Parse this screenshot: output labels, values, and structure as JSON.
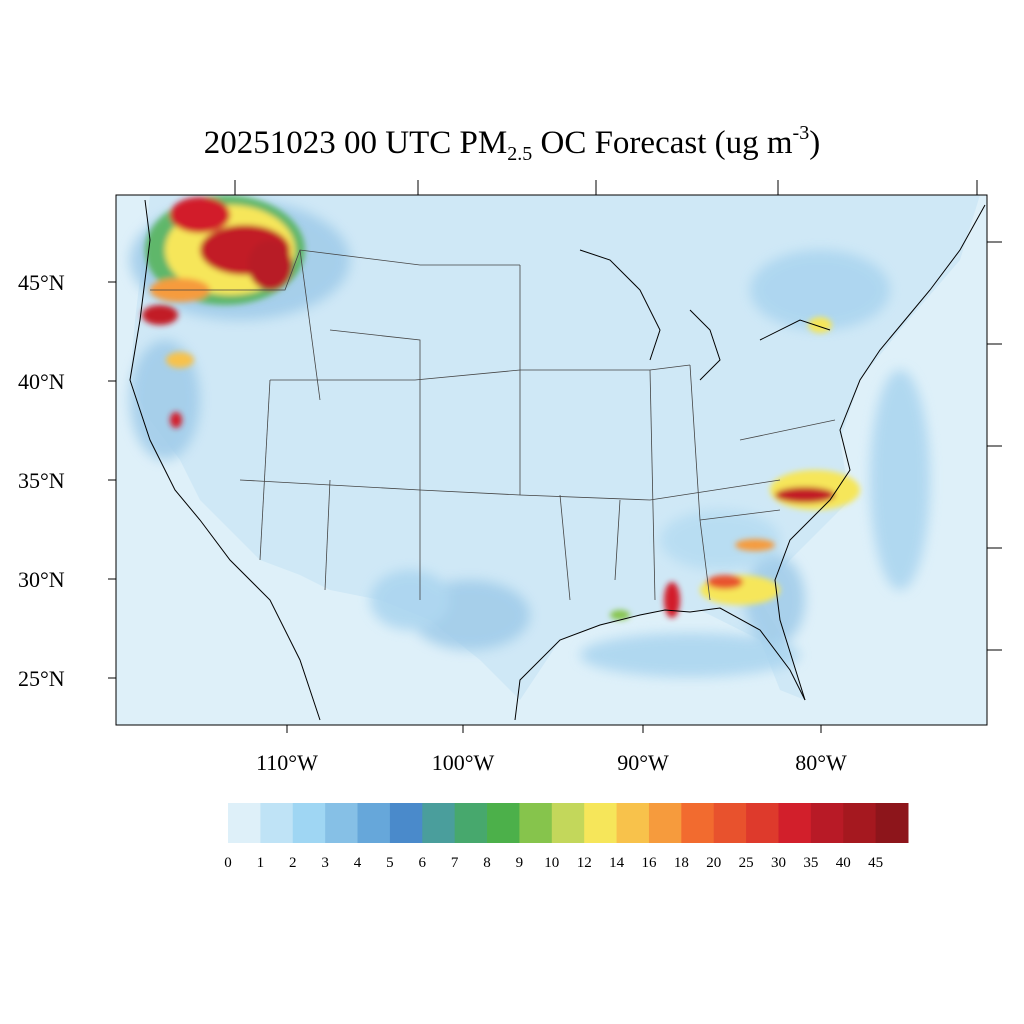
{
  "title": {
    "prefix": "20251023 00 UTC PM",
    "subscript": "2.5",
    "middle": " OC Forecast (ug m",
    "superscript": "-3",
    "suffix": ")"
  },
  "axes": {
    "lat_labels": [
      "45°N",
      "40°N",
      "35°N",
      "30°N",
      "25°N"
    ],
    "lon_labels": [
      "110°W",
      "100°W",
      "90°W",
      "80°W"
    ]
  },
  "colorbar": {
    "levels": [
      "0",
      "1",
      "2",
      "3",
      "4",
      "5",
      "6",
      "7",
      "8",
      "9",
      "10",
      "12",
      "14",
      "16",
      "18",
      "20",
      "25",
      "30",
      "35",
      "40",
      "45"
    ],
    "colors": [
      "#def0f9",
      "#bfe3f6",
      "#9fd6f3",
      "#86c0e6",
      "#66a7da",
      "#4a8acb",
      "#4a9e9c",
      "#47a86d",
      "#4cb04a",
      "#86c44c",
      "#c3d75b",
      "#f6e65a",
      "#f8c24b",
      "#f69b3d",
      "#f26b2f",
      "#e8522d",
      "#de3a2c",
      "#d21f2b",
      "#b81a26",
      "#a5181f",
      "#8d151b"
    ]
  },
  "map": {
    "ocean_color": "#def0f9",
    "border_color": "#444444",
    "coast_color": "#000000"
  }
}
